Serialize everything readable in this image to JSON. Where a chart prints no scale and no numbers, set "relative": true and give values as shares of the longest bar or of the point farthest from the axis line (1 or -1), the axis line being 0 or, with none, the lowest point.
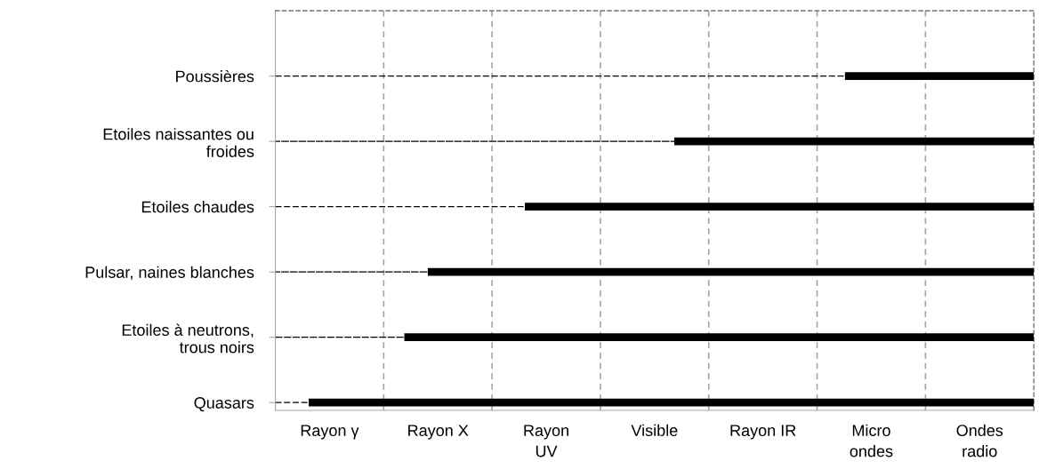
{
  "chart_data": {
    "type": "bar",
    "orientation": "horizontal",
    "relative": true,
    "stacked": true,
    "categories": [
      "Poussières",
      "Etoiles naissantes ou\nfroides",
      "Etoiles chaudes",
      "Pulsar, naines blanches",
      "Etoiles à neutrons,\ntrous noirs",
      "Quasars"
    ],
    "series": [
      {
        "color": "#000000",
        "line_style": "dashed",
        "values": [
          0.751,
          0.526,
          0.329,
          0.201,
          0.17,
          0.044
        ]
      },
      {
        "color": "#000000",
        "values": [
          0.249,
          0.474,
          0.671,
          0.799,
          0.83,
          0.956
        ]
      }
    ],
    "annotations": [
      "Rayon γ",
      "Rayon X",
      "Rayon\nUV",
      "Visible",
      "Rayon IR",
      "Micro\nondes",
      "Ondes\nradio"
    ]
  }
}
